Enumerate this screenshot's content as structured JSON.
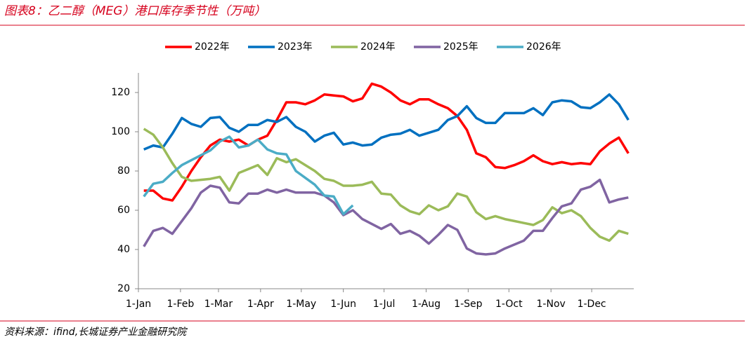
{
  "title": "图表8：乙二醇（MEG）港口库存季节性（万吨）",
  "source": "资料来源：ifind,长城证券产业金融研究院",
  "chart_data": {
    "type": "line",
    "x": [
      4,
      11,
      18,
      25,
      32,
      39,
      46,
      53,
      60,
      67,
      74,
      81,
      88,
      95,
      102,
      109,
      116,
      123,
      130,
      137,
      144,
      151,
      158,
      165,
      172,
      179,
      186,
      193,
      200,
      207,
      214,
      221,
      228,
      235,
      242,
      249,
      256,
      263,
      270,
      277,
      284,
      291,
      298,
      305,
      312,
      319,
      326,
      333,
      340,
      347,
      354,
      361
    ],
    "xlim": [
      0,
      365
    ],
    "xticks": [
      {
        "value": 0,
        "label": "1-Jan"
      },
      {
        "value": 31,
        "label": "1-Feb"
      },
      {
        "value": 59,
        "label": "1-Mar"
      },
      {
        "value": 90,
        "label": "1-Apr"
      },
      {
        "value": 120,
        "label": "1-May"
      },
      {
        "value": 151,
        "label": "1-Jun"
      },
      {
        "value": 181,
        "label": "1-Jul"
      },
      {
        "value": 212,
        "label": "1-Aug"
      },
      {
        "value": 243,
        "label": "1-Sep"
      },
      {
        "value": 273,
        "label": "1-Oct"
      },
      {
        "value": 304,
        "label": "1-Nov"
      },
      {
        "value": 334,
        "label": "1-Dec"
      }
    ],
    "ylim": [
      20,
      130
    ],
    "yticks": [
      20,
      40,
      60,
      80,
      100,
      120
    ],
    "legend": "top",
    "series": [
      {
        "name": "2022年",
        "color": "#ff0000",
        "values": [
          70,
          70,
          66,
          65,
          72,
          80,
          87,
          93,
          96,
          95,
          96,
          93,
          96,
          98,
          106,
          115,
          115,
          114,
          116,
          119,
          118.5,
          118,
          115.5,
          117,
          124.5,
          123,
          120,
          116,
          114,
          116.5,
          116.5,
          114,
          112,
          108,
          101,
          89,
          87,
          82,
          81.5,
          83,
          85,
          88,
          85,
          83.5,
          84.5,
          83.5,
          84,
          83.5,
          90,
          94,
          97,
          89
        ]
      },
      {
        "name": "2023年",
        "color": "#0070c0",
        "values": [
          91,
          93,
          92,
          99,
          107,
          104,
          102.5,
          107,
          107.5,
          102,
          100,
          103.5,
          103.5,
          106,
          105,
          107.5,
          102.5,
          100,
          95,
          98,
          99.5,
          93.5,
          94.5,
          93,
          93.5,
          97,
          98.5,
          99,
          101,
          98,
          99.5,
          101,
          106,
          108,
          113,
          107,
          104.5,
          104.5,
          109.5,
          109.5,
          109.5,
          112,
          108.5,
          115,
          116,
          115.5,
          112.5,
          112,
          115,
          119,
          114,
          106
        ]
      },
      {
        "name": "2024年",
        "color": "#9bbb59",
        "values": [
          101.5,
          98.5,
          92,
          84,
          77,
          75,
          75.5,
          76,
          77,
          70,
          79,
          81,
          83,
          78,
          86.5,
          84.5,
          86,
          83,
          80,
          76,
          75,
          72.5,
          72.5,
          73,
          74.5,
          68.5,
          68,
          62.5,
          59.5,
          58,
          62.5,
          60,
          62,
          68.5,
          67,
          59,
          55.5,
          57,
          55.5,
          54.5,
          53.5,
          52.5,
          55,
          61.5,
          58.5,
          60,
          57,
          51,
          46.5,
          44.5,
          49.5,
          48
        ]
      },
      {
        "name": "2025年",
        "color": "#8064a2",
        "values": [
          41.5,
          49.5,
          51,
          48,
          54.5,
          61,
          69,
          72.5,
          71.5,
          64,
          63.5,
          68.5,
          68.5,
          70.5,
          69,
          70.5,
          69,
          69,
          69,
          67.5,
          64,
          57.5,
          60,
          55.5,
          53,
          50.5,
          53,
          48,
          49.5,
          47,
          43,
          47.5,
          52.5,
          50,
          40.5,
          38,
          37.5,
          38,
          40.5,
          42.5,
          44.5,
          49.5,
          49.5,
          56,
          62,
          63.5,
          70.5,
          72,
          75.5,
          64,
          65.5,
          66.5
        ]
      },
      {
        "name": "2026年",
        "color": "#4bacc6",
        "values": [
          67,
          73.5,
          74.5,
          79,
          83,
          85.5,
          88,
          90.5,
          95,
          97.5,
          92,
          93,
          96,
          91,
          89,
          88.5,
          80,
          76.5,
          73,
          67.5,
          67,
          58,
          62.5,
          null,
          null,
          null,
          null,
          null,
          null,
          null,
          null,
          null,
          null,
          null,
          null,
          null,
          null,
          null,
          null,
          null,
          null,
          null,
          null,
          null,
          null,
          null,
          null,
          null,
          null,
          null,
          null,
          null
        ]
      }
    ]
  }
}
